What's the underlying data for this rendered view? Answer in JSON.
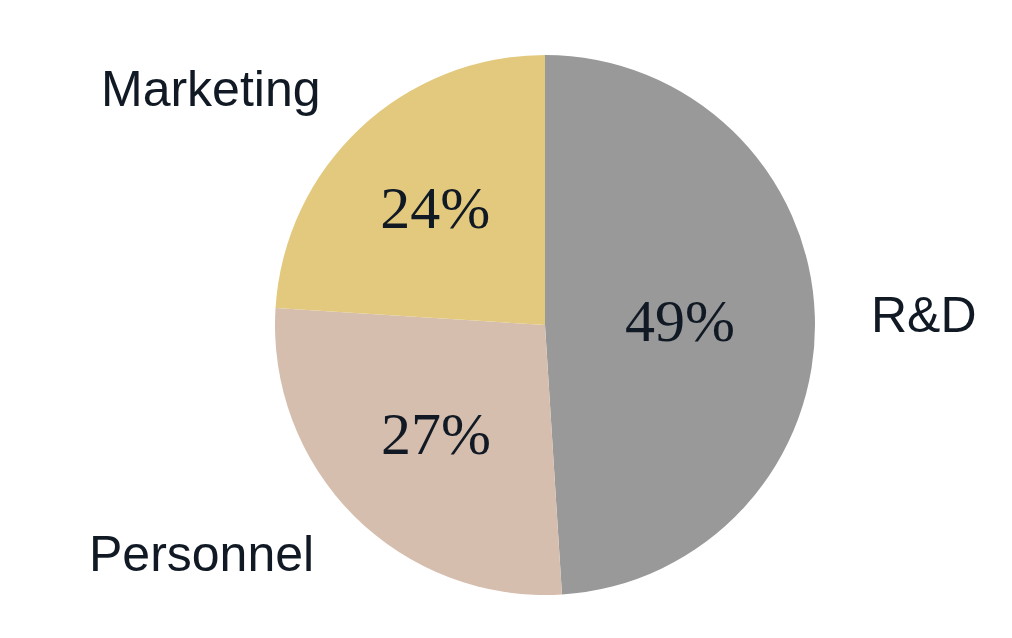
{
  "chart_data": {
    "type": "pie",
    "categories": [
      "R&D",
      "Personnel",
      "Marketing"
    ],
    "values": [
      49,
      27,
      24
    ],
    "colors": [
      "#999999",
      "#d6beae",
      "#e3c97e"
    ],
    "value_labels": [
      "49%",
      "27%",
      "24%"
    ],
    "legend": false
  }
}
